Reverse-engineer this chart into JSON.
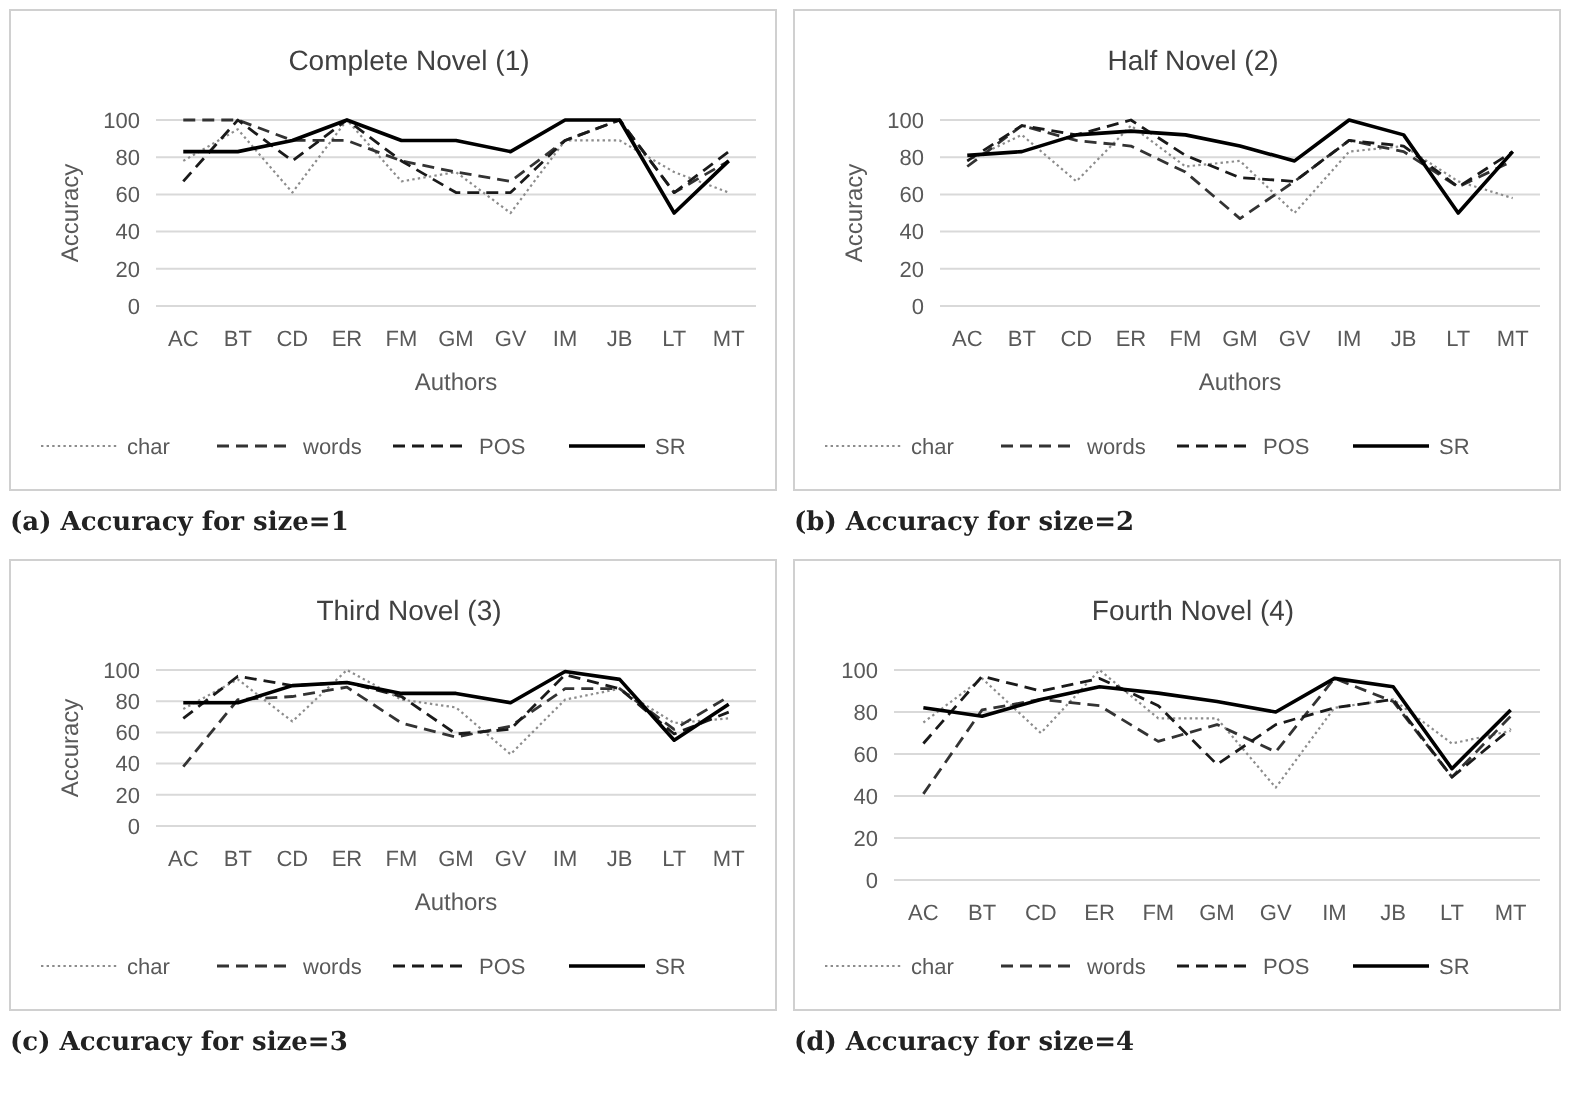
{
  "chart_data": [
    {
      "type": "line",
      "title": "Complete Novel (1)",
      "xlabel": "Authors",
      "ylabel": "Accuracy",
      "categories": [
        "AC",
        "BT",
        "CD",
        "ER",
        "FM",
        "GM",
        "GV",
        "IM",
        "JB",
        "LT",
        "MT"
      ],
      "ylim": [
        0,
        100
      ],
      "yticks": [
        0,
        20,
        40,
        60,
        80,
        100
      ],
      "grid": "y",
      "legend": "bottom",
      "marker": "none",
      "annotations": [
        "(a) Accuracy for size=1"
      ],
      "series": [
        {
          "name": "char",
          "color": "#8c8c8c",
          "line_style": "dotted",
          "values": [
            78,
            95,
            61,
            100,
            67,
            72,
            50,
            89,
            89,
            72,
            61
          ]
        },
        {
          "name": "words",
          "color": "#333333",
          "line_style": "dashed",
          "values": [
            100,
            100,
            89,
            89,
            78,
            72,
            67,
            89,
            100,
            61,
            78
          ]
        },
        {
          "name": "POS",
          "color": "#1a1a1a",
          "line_style": "dashed",
          "values": [
            67,
            100,
            78,
            100,
            78,
            61,
            61,
            89,
            100,
            61,
            83
          ]
        },
        {
          "name": "SR",
          "color": "#000000",
          "line_style": "solid",
          "values": [
            83,
            83,
            89,
            100,
            89,
            89,
            83,
            100,
            100,
            50,
            78
          ]
        }
      ]
    },
    {
      "type": "line",
      "title": "Half Novel (2)",
      "xlabel": "Authors",
      "ylabel": "Accuracy",
      "categories": [
        "AC",
        "BT",
        "CD",
        "ER",
        "FM",
        "GM",
        "GV",
        "IM",
        "JB",
        "LT",
        "MT"
      ],
      "ylim": [
        0,
        100
      ],
      "yticks": [
        0,
        20,
        40,
        60,
        80,
        100
      ],
      "grid": "y",
      "legend": "bottom",
      "marker": "none",
      "annotations": [
        "(b) Accuracy for size=2"
      ],
      "series": [
        {
          "name": "char",
          "color": "#8c8c8c",
          "line_style": "dotted",
          "values": [
            78,
            92,
            67,
            97,
            75,
            78,
            50,
            83,
            86,
            67,
            58
          ]
        },
        {
          "name": "words",
          "color": "#333333",
          "line_style": "dashed",
          "values": [
            75,
            97,
            89,
            86,
            72,
            47,
            67,
            89,
            83,
            64,
            78
          ]
        },
        {
          "name": "POS",
          "color": "#1a1a1a",
          "line_style": "dashed",
          "values": [
            78,
            97,
            92,
            100,
            81,
            69,
            67,
            89,
            86,
            64,
            83
          ]
        },
        {
          "name": "SR",
          "color": "#000000",
          "line_style": "solid",
          "values": [
            81,
            83,
            92,
            94,
            92,
            86,
            78,
            100,
            92,
            50,
            83
          ]
        }
      ]
    },
    {
      "type": "line",
      "title": "Third Novel (3)",
      "xlabel": "Authors",
      "ylabel": "Accuracy",
      "categories": [
        "AC",
        "BT",
        "CD",
        "ER",
        "FM",
        "GM",
        "GV",
        "IM",
        "JB",
        "LT",
        "MT"
      ],
      "ylim": [
        0,
        100
      ],
      "yticks": [
        0,
        20,
        40,
        60,
        80,
        100
      ],
      "grid": "y",
      "legend": "bottom",
      "marker": "none",
      "annotations": [
        "(c) Accuracy for size=3"
      ],
      "series": [
        {
          "name": "char",
          "color": "#8c8c8c",
          "line_style": "dotted",
          "values": [
            75,
            94,
            67,
            100,
            81,
            76,
            46,
            81,
            88,
            66,
            69
          ]
        },
        {
          "name": "words",
          "color": "#333333",
          "line_style": "dashed",
          "values": [
            38,
            81,
            83,
            89,
            66,
            57,
            64,
            88,
            88,
            62,
            83
          ]
        },
        {
          "name": "POS",
          "color": "#1a1a1a",
          "line_style": "dashed",
          "values": [
            69,
            96,
            90,
            92,
            83,
            59,
            62,
            97,
            88,
            59,
            73
          ]
        },
        {
          "name": "SR",
          "color": "#000000",
          "line_style": "solid",
          "values": [
            79,
            79,
            90,
            92,
            85,
            85,
            79,
            99,
            94,
            55,
            78
          ]
        }
      ]
    },
    {
      "type": "line",
      "title": "Fourth Novel (4)",
      "categories": [
        "AC",
        "BT",
        "CD",
        "ER",
        "FM",
        "GM",
        "GV",
        "IM",
        "JB",
        "LT",
        "MT"
      ],
      "ylim": [
        0,
        100
      ],
      "yticks": [
        0,
        20,
        40,
        60,
        80,
        100
      ],
      "grid": "y",
      "legend": "bottom",
      "marker": "none",
      "annotations": [
        "(d) Accuracy for size=4"
      ],
      "series": [
        {
          "name": "char",
          "color": "#8c8c8c",
          "line_style": "dotted",
          "values": [
            75,
            96,
            70,
            100,
            77,
            77,
            44,
            82,
            86,
            65,
            71
          ]
        },
        {
          "name": "words",
          "color": "#333333",
          "line_style": "dashed",
          "values": [
            41,
            81,
            86,
            83,
            66,
            74,
            61,
            96,
            85,
            49,
            78
          ]
        },
        {
          "name": "POS",
          "color": "#1a1a1a",
          "line_style": "dashed",
          "values": [
            65,
            97,
            90,
            96,
            83,
            55,
            74,
            82,
            86,
            49,
            72
          ]
        },
        {
          "name": "SR",
          "color": "#000000",
          "line_style": "solid",
          "values": [
            82,
            78,
            86,
            92,
            89,
            85,
            80,
            96,
            92,
            53,
            81
          ]
        }
      ]
    }
  ]
}
